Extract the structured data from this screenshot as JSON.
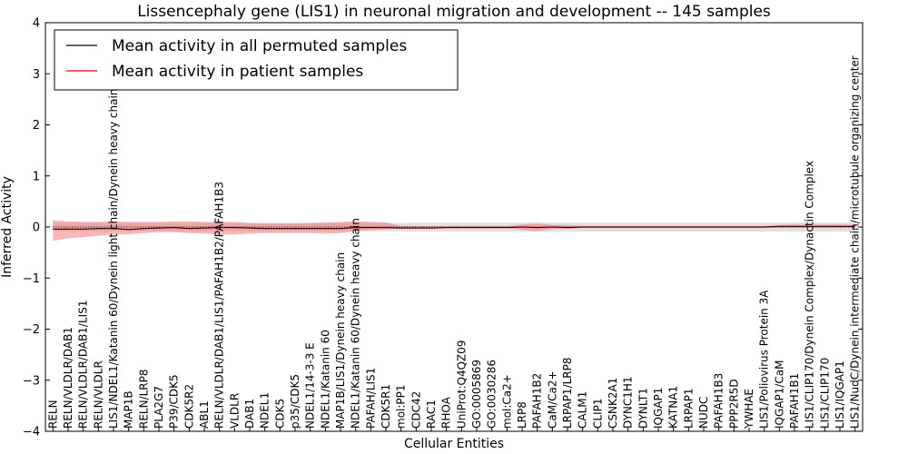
{
  "chart_data": {
    "type": "line",
    "title": "Lissencephaly gene (LIS1) in neuronal migration and development -- 145 samples",
    "xlabel": "Cellular Entities",
    "ylabel": "Inferred Activity",
    "ylim": [
      -4,
      4
    ],
    "yticks": [
      -4,
      -3,
      -2,
      -1,
      0,
      1,
      2,
      3,
      4
    ],
    "ytick_labels": [
      "−4",
      "−3",
      "−2",
      "−1",
      "0",
      "1",
      "2",
      "3",
      "4"
    ],
    "legend_position": "top-left",
    "categories": [
      "RELN",
      "RELN/VLDLR/DAB1",
      "RELN/VLDLR/DAB1/LIS1",
      "RELN/VLDLR",
      "LIS1/NDEL1/Katanin 60/Dynein light chain/Dynein heavy chain",
      "MAP1B",
      "RELN/LRP8",
      "PLA2G7",
      "P39/CDK5",
      "CDK5R2",
      "ABL1",
      "RELN/VLDLR/DAB1/LIS1/PAFAH1B2/PAFAH1B3",
      "VLDLR",
      "DAB1",
      "NDEL1",
      "CDK5",
      "p35/CDK5",
      "NDEL1/14-3-3 E",
      "NDEL1/Katanin 60",
      "MAP1B/LIS1/Dynein heavy chain",
      "NDEL1/Katanin 60/Dynein heavy chain",
      "PAFAH/LIS1",
      "CDK5R1",
      "mol:PP1",
      "CDC42",
      "RAC1",
      "RHOA",
      "UniProt:Q4QZ09",
      "GO:0005869",
      "GO:0030286",
      "mol:Ca2+",
      "LRP8",
      "PAFAH1B2",
      "CaM/Ca2+",
      "LRPAP1/LRP8",
      "CALM1",
      "CLIP1",
      "CSNK2A1",
      "DYNC1H1",
      "DYNLT1",
      "IQGAP1",
      "KATNA1",
      "LRPAP1",
      "NUDC",
      "PAFAH1B3",
      "PPP2R5D",
      "YWHAE",
      "LIS1/Poliovirus Protein 3A",
      "IQGAP1/CaM",
      "PAFAH1B1",
      "LIS1/CLIP170/Dynein Complex/Dynactin Complex",
      "LIS1/CLIP170",
      "LIS1/IQGAP1",
      "LIS1/NudC/Dynein intermediate chain/microtubule organizing center"
    ],
    "series": [
      {
        "name": "Mean activity in all permuted samples",
        "color": "#000000",
        "values": [
          0.0,
          0.0,
          0.0,
          0.0,
          0.0,
          0.0,
          0.0,
          0.0,
          0.0,
          0.0,
          0.0,
          0.0,
          0.0,
          0.0,
          0.0,
          0.0,
          0.0,
          0.0,
          0.0,
          0.0,
          0.0,
          0.0,
          0.0,
          0.0,
          0.0,
          0.0,
          0.0,
          0.0,
          0.0,
          0.0,
          0.0,
          0.0,
          0.0,
          0.0,
          0.0,
          0.0,
          0.0,
          0.0,
          0.0,
          0.0,
          0.0,
          0.0,
          0.0,
          0.0,
          0.0,
          0.0,
          0.0,
          0.0,
          0.0,
          0.0,
          0.0,
          0.0,
          0.0,
          0.0
        ],
        "lower": [
          -0.08,
          -0.08,
          -0.08,
          -0.08,
          -0.08,
          -0.08,
          -0.08,
          -0.08,
          -0.08,
          -0.08,
          -0.08,
          -0.08,
          -0.08,
          -0.08,
          -0.08,
          -0.08,
          -0.08,
          -0.08,
          -0.08,
          -0.08,
          -0.08,
          -0.08,
          -0.08,
          -0.08,
          -0.09,
          -0.09,
          -0.09,
          -0.09,
          -0.09,
          -0.09,
          -0.09,
          -0.09,
          -0.09,
          -0.09,
          -0.09,
          -0.09,
          -0.09,
          -0.09,
          -0.09,
          -0.09,
          -0.09,
          -0.09,
          -0.09,
          -0.09,
          -0.09,
          -0.09,
          -0.09,
          -0.09,
          -0.09,
          -0.09,
          -0.09,
          -0.09,
          -0.09,
          -0.09
        ],
        "upper": [
          0.08,
          0.08,
          0.08,
          0.08,
          0.08,
          0.08,
          0.08,
          0.08,
          0.08,
          0.08,
          0.08,
          0.08,
          0.08,
          0.08,
          0.08,
          0.08,
          0.08,
          0.08,
          0.08,
          0.08,
          0.08,
          0.08,
          0.08,
          0.08,
          0.09,
          0.09,
          0.09,
          0.09,
          0.09,
          0.09,
          0.09,
          0.09,
          0.09,
          0.09,
          0.09,
          0.09,
          0.09,
          0.09,
          0.09,
          0.09,
          0.09,
          0.09,
          0.09,
          0.09,
          0.09,
          0.09,
          0.09,
          0.09,
          0.09,
          0.09,
          0.09,
          0.09,
          0.09,
          0.09
        ]
      },
      {
        "name": "Mean activity in patient samples",
        "color": "#ff0000",
        "values": [
          -0.04,
          -0.04,
          -0.04,
          -0.03,
          -0.03,
          -0.05,
          -0.03,
          -0.02,
          -0.01,
          -0.03,
          -0.02,
          -0.01,
          -0.01,
          -0.02,
          -0.03,
          -0.03,
          -0.03,
          -0.03,
          -0.03,
          -0.03,
          -0.01,
          -0.01,
          -0.01,
          -0.02,
          -0.02,
          -0.02,
          -0.01,
          -0.01,
          -0.01,
          -0.01,
          -0.01,
          0.0,
          -0.01,
          0.0,
          -0.01,
          0.0,
          0.0,
          0.0,
          0.0,
          0.0,
          0.0,
          0.0,
          0.0,
          0.0,
          0.0,
          0.0,
          0.0,
          0.0,
          0.01,
          0.01,
          0.01,
          0.01,
          0.01,
          0.01
        ],
        "lower": [
          -0.27,
          -0.22,
          -0.2,
          -0.17,
          -0.15,
          -0.14,
          -0.12,
          -0.1,
          -0.1,
          -0.12,
          -0.13,
          -0.15,
          -0.15,
          -0.13,
          -0.12,
          -0.12,
          -0.12,
          -0.12,
          -0.13,
          -0.12,
          -0.08,
          -0.06,
          -0.05,
          -0.02,
          -0.02,
          -0.02,
          -0.02,
          -0.02,
          -0.02,
          -0.02,
          -0.02,
          -0.06,
          -0.08,
          -0.04,
          -0.04,
          -0.02,
          -0.02,
          -0.02,
          -0.02,
          -0.02,
          -0.02,
          -0.02,
          -0.02,
          -0.02,
          -0.02,
          -0.02,
          -0.02,
          -0.02,
          -0.01,
          -0.01,
          -0.01,
          -0.01,
          -0.01,
          -0.01
        ],
        "upper": [
          0.13,
          0.11,
          0.1,
          0.1,
          0.11,
          0.1,
          0.1,
          0.1,
          0.11,
          0.11,
          0.1,
          0.1,
          0.1,
          0.08,
          0.07,
          0.07,
          0.07,
          0.08,
          0.09,
          0.1,
          0.11,
          0.1,
          0.09,
          0.02,
          0.02,
          0.02,
          0.02,
          0.02,
          0.02,
          0.02,
          0.02,
          0.05,
          0.07,
          0.04,
          0.04,
          0.02,
          0.02,
          0.02,
          0.02,
          0.02,
          0.02,
          0.02,
          0.02,
          0.02,
          0.02,
          0.02,
          0.02,
          0.02,
          0.04,
          0.05,
          0.05,
          0.05,
          0.05,
          0.05
        ]
      }
    ]
  }
}
